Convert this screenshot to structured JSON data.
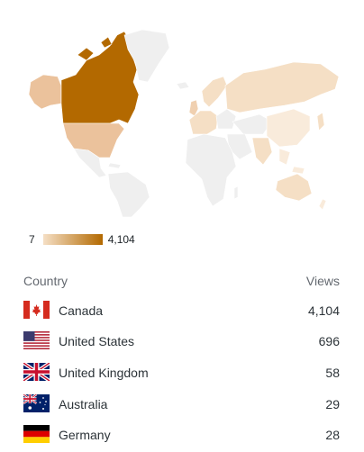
{
  "legend": {
    "min": "7",
    "max": "4,104",
    "color_low": "#f5dfc5",
    "color_high": "#b36900"
  },
  "table": {
    "headers": {
      "country": "Country",
      "views": "Views"
    },
    "rows": [
      {
        "country": "Canada",
        "views": "4,104",
        "flag": "canada-flag-icon"
      },
      {
        "country": "United States",
        "views": "696",
        "flag": "usa-flag-icon"
      },
      {
        "country": "United Kingdom",
        "views": "58",
        "flag": "uk-flag-icon"
      },
      {
        "country": "Australia",
        "views": "29",
        "flag": "australia-flag-icon"
      },
      {
        "country": "Germany",
        "views": "28",
        "flag": "germany-flag-icon"
      }
    ]
  },
  "map_colors": {
    "canada": "#b36900",
    "usa": "#ebc29c",
    "high": "#f0d0b0",
    "light": "#f5dfc5",
    "faint": "#f9ebdb",
    "none": "#efefef"
  }
}
